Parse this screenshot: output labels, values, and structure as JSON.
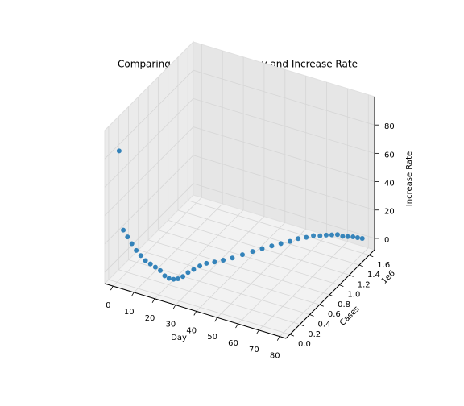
{
  "chart_data": {
    "type": "scatter3d",
    "title": "Comparing Cases with the Day and Increase Rate",
    "xlabel": "Day",
    "ylabel": "Cases",
    "zlabel": "Increase Rate",
    "y_offset_label": "1e6",
    "color": "#1f77b4",
    "x": [
      1,
      3,
      5,
      7,
      9,
      11,
      13,
      15,
      17,
      19,
      21,
      23,
      25,
      27,
      29,
      31,
      33,
      35,
      37,
      39,
      41,
      43,
      45,
      47,
      49,
      51,
      53,
      55,
      57,
      59,
      61,
      63,
      65,
      67,
      69,
      71,
      73,
      75,
      77,
      79
    ],
    "y": [
      555,
      850,
      2000,
      6000,
      9800,
      17000,
      28000,
      43000,
      60000,
      75000,
      80000,
      83000,
      90000,
      96000,
      110000,
      130000,
      160000,
      200000,
      250000,
      330000,
      420000,
      520000,
      640000,
      760000,
      870000,
      980000,
      1080000,
      1180000,
      1260000,
      1340000,
      1400000,
      1450000,
      1490000,
      1520000,
      1550000,
      1570000,
      1590000,
      1610000,
      1620000,
      1630000
    ],
    "z": [
      85,
      30,
      26,
      22,
      18,
      15,
      12,
      10,
      8,
      6,
      3,
      2,
      2,
      3,
      5,
      8,
      10,
      12,
      13,
      12,
      11,
      10,
      9,
      8,
      7,
      6,
      5,
      4,
      4,
      3,
      3,
      2,
      2,
      2,
      2,
      1,
      1,
      1,
      1,
      1
    ],
    "xlim": [
      -4,
      83
    ],
    "ylim": [
      -80000,
      1710000
    ],
    "zlim": [
      -8,
      100
    ],
    "xticks": [
      0,
      10,
      20,
      30,
      40,
      50,
      60,
      70,
      80
    ],
    "yticks": [
      {
        "value": 0,
        "label": "0.0"
      },
      {
        "value": 200000,
        "label": "0.2"
      },
      {
        "value": 400000,
        "label": "0.4"
      },
      {
        "value": 600000,
        "label": "0.6"
      },
      {
        "value": 800000,
        "label": "0.8"
      },
      {
        "value": 1000000,
        "label": "1.0"
      },
      {
        "value": 1200000,
        "label": "1.2"
      },
      {
        "value": 1400000,
        "label": "1.4"
      },
      {
        "value": 1600000,
        "label": "1.6"
      }
    ],
    "zticks": [
      0,
      20,
      40,
      60,
      80
    ],
    "grid": true
  }
}
